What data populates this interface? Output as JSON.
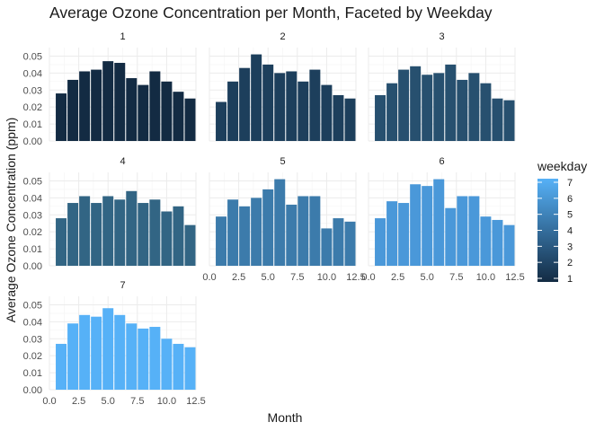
{
  "chart_data": {
    "type": "bar",
    "title": "Average Ozone Concentration per Month, Faceted by Weekday",
    "xlabel": "Month",
    "ylabel": "Average Ozone Concentration (ppm)",
    "facet_by": "weekday",
    "xlim": [
      0,
      12.5
    ],
    "ylim": [
      0,
      0.055
    ],
    "x_ticks": [
      "0.0",
      "2.5",
      "5.0",
      "7.5",
      "10.0",
      "12.5"
    ],
    "y_ticks": [
      "0.00",
      "0.01",
      "0.02",
      "0.03",
      "0.04",
      "0.05"
    ],
    "months": [
      1,
      2,
      3,
      4,
      5,
      6,
      7,
      8,
      9,
      10,
      11,
      12
    ],
    "legend": {
      "title": "weekday",
      "labels": [
        "7",
        "6",
        "5",
        "4",
        "3",
        "2",
        "1"
      ],
      "color_low": "#132B43",
      "color_high": "#56B1F7",
      "placement": "right"
    },
    "panels": [
      {
        "label": "1",
        "color": "#132b43",
        "values": [
          0.028,
          0.036,
          0.041,
          0.042,
          0.047,
          0.046,
          0.037,
          0.033,
          0.041,
          0.035,
          0.029,
          0.025
        ]
      },
      {
        "label": "2",
        "color": "#1d3f5c",
        "values": [
          0.023,
          0.035,
          0.043,
          0.051,
          0.045,
          0.04,
          0.041,
          0.035,
          0.042,
          0.033,
          0.027,
          0.025
        ]
      },
      {
        "label": "3",
        "color": "#27506f",
        "values": [
          0.027,
          0.034,
          0.042,
          0.044,
          0.039,
          0.04,
          0.045,
          0.036,
          0.04,
          0.034,
          0.025,
          0.024
        ]
      },
      {
        "label": "4",
        "color": "#326584",
        "values": [
          0.028,
          0.037,
          0.041,
          0.037,
          0.041,
          0.039,
          0.044,
          0.037,
          0.039,
          0.032,
          0.035,
          0.024
        ]
      },
      {
        "label": "5",
        "color": "#3c7bab",
        "values": [
          0.029,
          0.039,
          0.035,
          0.04,
          0.045,
          0.051,
          0.036,
          0.041,
          0.041,
          0.022,
          0.028,
          0.026
        ]
      },
      {
        "label": "6",
        "color": "#4a98d9",
        "values": [
          0.028,
          0.038,
          0.037,
          0.048,
          0.047,
          0.051,
          0.034,
          0.041,
          0.041,
          0.029,
          0.027,
          0.024
        ]
      },
      {
        "label": "7",
        "color": "#56b1f7",
        "values": [
          0.027,
          0.039,
          0.044,
          0.043,
          0.048,
          0.044,
          0.039,
          0.036,
          0.037,
          0.03,
          0.027,
          0.025
        ]
      }
    ]
  }
}
